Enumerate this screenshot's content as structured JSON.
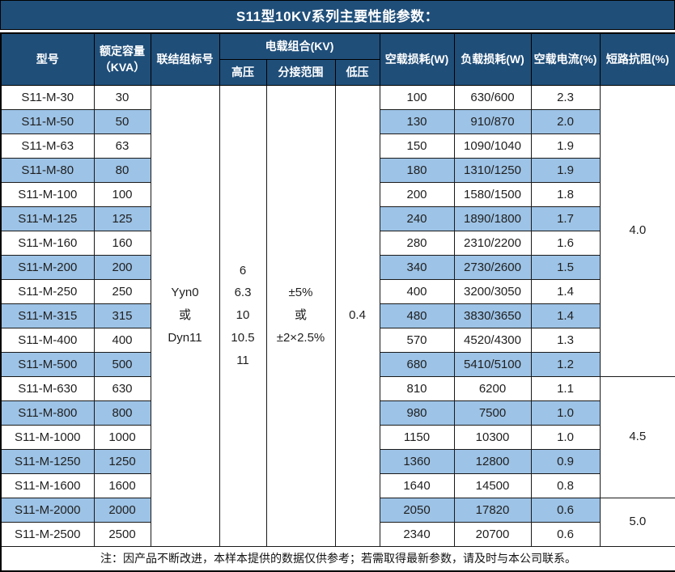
{
  "title": "S11型10KV系列主要性能参数：",
  "columns": {
    "model": "型号",
    "capacity": "额定容量\n（KVA）",
    "vector_group": "联结组标号",
    "voltage_group": "电载组合(KV)",
    "hv": "高压",
    "tap_range": "分接范围",
    "lv": "低压",
    "no_load_loss": "空载损耗(W)",
    "load_loss": "负载损耗(W)",
    "no_load_current": "空载电流(%)",
    "impedance": "短路抗阻(%)"
  },
  "merged": {
    "vector_group": "Yyn0\n或\nDyn11",
    "hv": "6\n6.3\n10\n10.5\n11",
    "tap_range": "±5%\n或\n±2×2.5%",
    "lv": "0.4"
  },
  "impedance_groups": [
    {
      "value": "4.0",
      "start": 0,
      "span": 12
    },
    {
      "value": "4.5",
      "start": 12,
      "span": 5
    },
    {
      "value": "5.0",
      "start": 17,
      "span": 2
    }
  ],
  "rows": [
    {
      "model": "S11-M-30",
      "capacity": "30",
      "no_load_loss": "100",
      "load_loss": "630/600",
      "no_load_current": "2.3"
    },
    {
      "model": "S11-M-50",
      "capacity": "50",
      "no_load_loss": "130",
      "load_loss": "910/870",
      "no_load_current": "2.0"
    },
    {
      "model": "S11-M-63",
      "capacity": "63",
      "no_load_loss": "150",
      "load_loss": "1090/1040",
      "no_load_current": "1.9"
    },
    {
      "model": "S11-M-80",
      "capacity": "80",
      "no_load_loss": "180",
      "load_loss": "1310/1250",
      "no_load_current": "1.9"
    },
    {
      "model": "S11-M-100",
      "capacity": "100",
      "no_load_loss": "200",
      "load_loss": "1580/1500",
      "no_load_current": "1.8"
    },
    {
      "model": "S11-M-125",
      "capacity": "125",
      "no_load_loss": "240",
      "load_loss": "1890/1800",
      "no_load_current": "1.7"
    },
    {
      "model": "S11-M-160",
      "capacity": "160",
      "no_load_loss": "280",
      "load_loss": "2310/2200",
      "no_load_current": "1.6"
    },
    {
      "model": "S11-M-200",
      "capacity": "200",
      "no_load_loss": "340",
      "load_loss": "2730/2600",
      "no_load_current": "1.5"
    },
    {
      "model": "S11-M-250",
      "capacity": "250",
      "no_load_loss": "400",
      "load_loss": "3200/3050",
      "no_load_current": "1.4"
    },
    {
      "model": "S11-M-315",
      "capacity": "315",
      "no_load_loss": "480",
      "load_loss": "3830/3650",
      "no_load_current": "1.4"
    },
    {
      "model": "S11-M-400",
      "capacity": "400",
      "no_load_loss": "570",
      "load_loss": "4520/4300",
      "no_load_current": "1.3"
    },
    {
      "model": "S11-M-500",
      "capacity": "500",
      "no_load_loss": "680",
      "load_loss": "5410/5100",
      "no_load_current": "1.2"
    },
    {
      "model": "S11-M-630",
      "capacity": "630",
      "no_load_loss": "810",
      "load_loss": "6200",
      "no_load_current": "1.1"
    },
    {
      "model": "S11-M-800",
      "capacity": "800",
      "no_load_loss": "980",
      "load_loss": "7500",
      "no_load_current": "1.0"
    },
    {
      "model": "S11-M-1000",
      "capacity": "1000",
      "no_load_loss": "1150",
      "load_loss": "10300",
      "no_load_current": "1.0"
    },
    {
      "model": "S11-M-1250",
      "capacity": "1250",
      "no_load_loss": "1360",
      "load_loss": "12800",
      "no_load_current": "0.9"
    },
    {
      "model": "S11-M-1600",
      "capacity": "1600",
      "no_load_loss": "1640",
      "load_loss": "14500",
      "no_load_current": "0.8"
    },
    {
      "model": "S11-M-2000",
      "capacity": "2000",
      "no_load_loss": "2050",
      "load_loss": "17820",
      "no_load_current": "0.6"
    },
    {
      "model": "S11-M-2500",
      "capacity": "2500",
      "no_load_loss": "2340",
      "load_loss": "20700",
      "no_load_current": "0.6"
    }
  ],
  "note": "注：因产品不断改进，本样本提供的数据仅供参考；若需取得最新参数，请及时与本公司联系。",
  "colors": {
    "header_bg": "#1F4E79",
    "band_bg": "#9DC3E6",
    "border": "#000000"
  }
}
